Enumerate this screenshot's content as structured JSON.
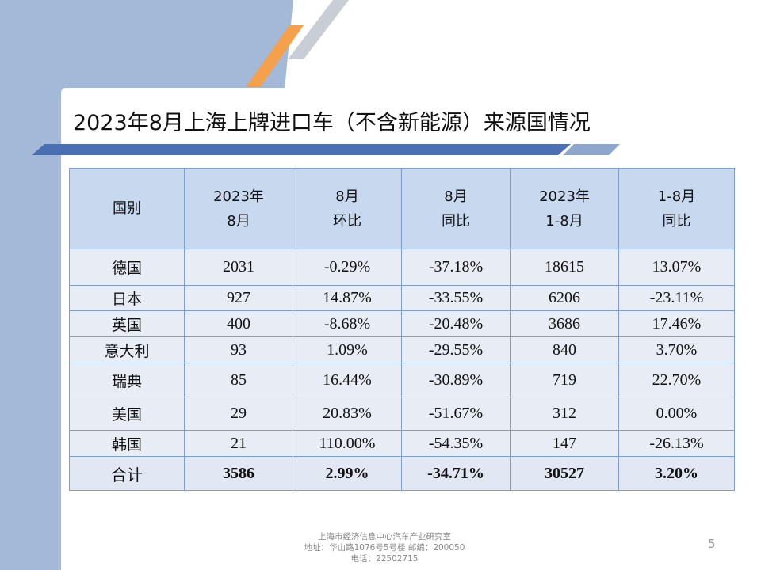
{
  "slide": {
    "title": "2023年8月上海上牌进口车（不含新能源）来源国情况",
    "page_number": "5",
    "colors": {
      "left_band": "#a4b8d8",
      "accent_orange": "#f5a04a",
      "header_fill": "#c7d8ef",
      "cell_fill": "#e7ecf5",
      "title_underline": "#4a6fb3"
    }
  },
  "table": {
    "headers": [
      {
        "line1": "国别",
        "line2": ""
      },
      {
        "line1": "2023年",
        "line2": "8月"
      },
      {
        "line1": "8月",
        "line2": "环比"
      },
      {
        "line1": "8月",
        "line2": "同比"
      },
      {
        "line1": "2023年",
        "line2": "1-8月"
      },
      {
        "line1": "1-8月",
        "line2": "同比"
      }
    ],
    "rows": [
      [
        "德国",
        "2031",
        "-0.29%",
        "-37.18%",
        "18615",
        "13.07%"
      ],
      [
        "日本",
        "927",
        "14.87%",
        "-33.55%",
        "6206",
        "-23.11%"
      ],
      [
        "英国",
        "400",
        "-8.68%",
        "-20.48%",
        "3686",
        "17.46%"
      ],
      [
        "意大利",
        "93",
        "1.09%",
        "-29.55%",
        "840",
        "3.70%"
      ],
      [
        "瑞典",
        "85",
        "16.44%",
        "-30.89%",
        "719",
        "22.70%"
      ],
      [
        "美国",
        "29",
        "20.83%",
        "-51.67%",
        "312",
        "0.00%"
      ],
      [
        "韩国",
        "21",
        "110.00%",
        "-54.35%",
        "147",
        "-26.13%"
      ]
    ],
    "total": [
      "合计",
      "3586",
      "2.99%",
      "-34.71%",
      "30527",
      "3.20%"
    ]
  },
  "footer": {
    "org": "上海市经济信息中心汽车产业研究室",
    "address": "地址：华山路1076号5号楼    邮编：200050",
    "phone": "电话：22502715"
  }
}
